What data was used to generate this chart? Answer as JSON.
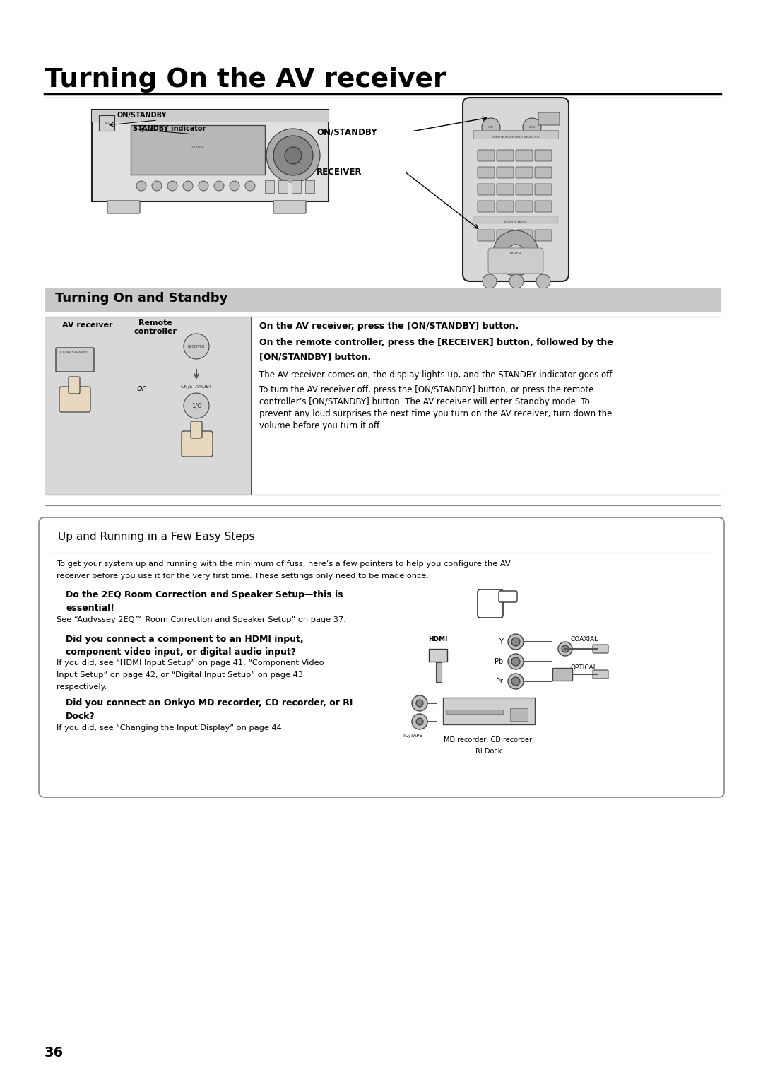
{
  "title": "Turning On the AV receiver",
  "bg_color": "#ffffff",
  "page_number": "36",
  "section1_title": "Turning On and Standby",
  "section1_bg": "#c8c8c8",
  "section2_title": "Up and Running in a Few Easy Steps",
  "labels": {
    "on_standby_left": "ON/STANDBY",
    "standby_indicator": "STANDBY indicator",
    "on_standby_right": "ON/STANDBY",
    "receiver": "RECEIVER",
    "av_receiver": "AV receiver",
    "remote_controller": "Remote\ncontroller",
    "or": "or"
  },
  "text_blocks": {
    "step1_bold": "On the AV receiver, press the [ON/STANDBY] button.",
    "step2_bold_1": "On the remote controller, press the [RECEIVER] button, followed by the",
    "step2_bold_2": "[ON/STANDBY] button.",
    "step2_normal": "The AV receiver comes on, the display lights up, and the STANDBY indicator goes off.",
    "step3_line1": "To turn the AV receiver off, press the [ON/STANDBY] button, or press the remote",
    "step3_line2": "controller’s [ON/STANDBY] button. The AV receiver will enter Standby mode. To",
    "step3_line3": "prevent any loud surprises the next time you turn on the AV receiver, turn down the",
    "step3_line4": "volume before you turn it off.",
    "intro_line1": "To get your system up and running with the minimum of fuss, here’s a few pointers to help you configure the AV",
    "intro_line2": "receiver before you use it for the very first time. These settings only need to be made once.",
    "q1_bold_1": "Do the 2EQ Room Correction and Speaker Setup—this is",
    "q1_bold_2": "essential!",
    "q1_normal": "See “Audyssey 2EQ™ Room Correction and Speaker Setup” on page 37.",
    "q2_bold_1": "Did you connect a component to an HDMI input,",
    "q2_bold_2": "component video input, or digital audio input?",
    "q2_normal_1": "If you did, see “HDMI Input Setup” on page 41, “Component Video",
    "q2_normal_2": "Input Setup” on page 42, or “Digital Input Setup” on page 43",
    "q2_normal_3": "respectively.",
    "q3_bold_1": "Did you connect an Onkyo MD recorder, CD recorder, or RI",
    "q3_bold_2": "Dock?",
    "q3_normal": "If you did, see “Changing the Input Display” on page 44.",
    "coaxial": "COAXIAL",
    "optical": "OPTICAL",
    "hdmi": "HDMI",
    "to_tape": "TO/TAPE",
    "md_label_1": "MD recorder, CD recorder,",
    "md_label_2": "RI Dock",
    "y_label": "Y",
    "pb_label": "Pb",
    "pr_label": "Pr"
  }
}
